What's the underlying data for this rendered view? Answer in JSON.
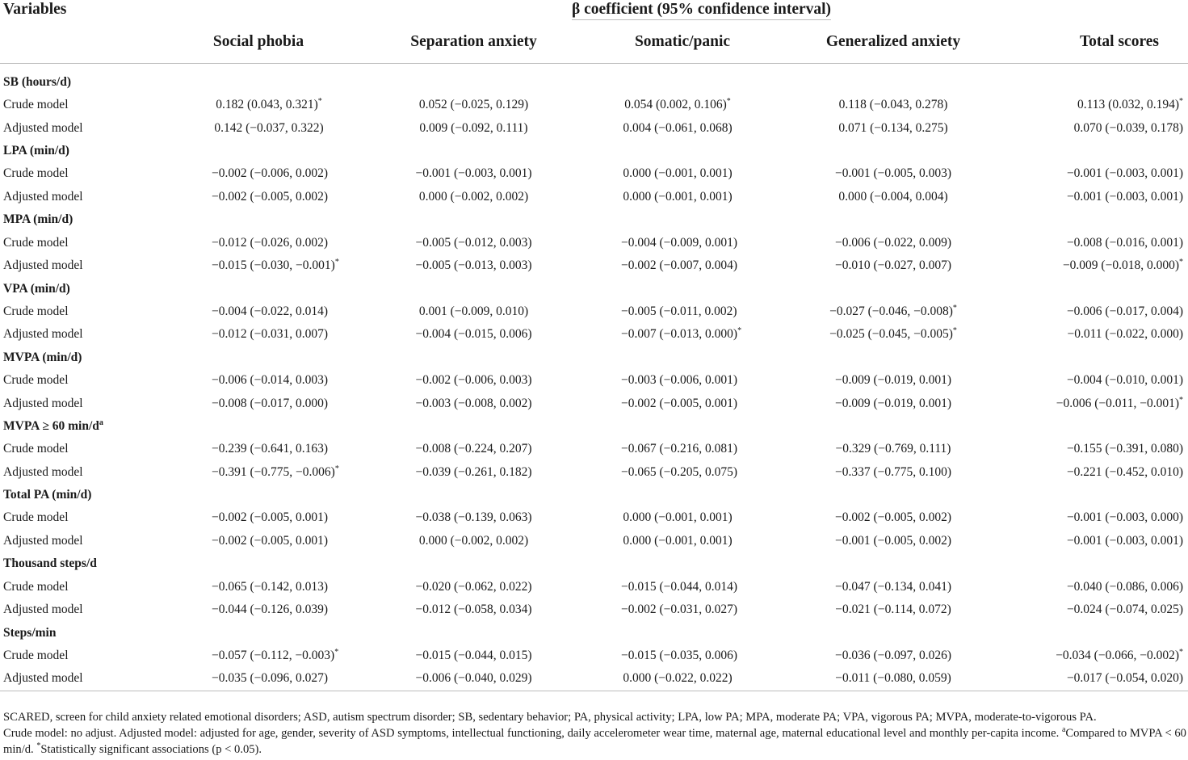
{
  "header": {
    "variables_label": "Variables",
    "span_label": "β coefficient (95% confidence interval)",
    "columns": [
      "Social phobia",
      "Separation anxiety",
      "Somatic/panic",
      "Generalized anxiety",
      "Total scores"
    ]
  },
  "groups": [
    {
      "label": "SB (hours/d)",
      "rows": [
        {
          "label": "Crude model",
          "cells": [
            {
              "text": "0.182 (0.043, 0.321)",
              "sig": "*"
            },
            {
              "text": "0.052 (−0.025, 0.129)",
              "sig": ""
            },
            {
              "text": "0.054 (0.002, 0.106)",
              "sig": "*"
            },
            {
              "text": "0.118 (−0.043, 0.278)",
              "sig": ""
            },
            {
              "text": "0.113 (0.032, 0.194)",
              "sig": "*"
            }
          ]
        },
        {
          "label": "Adjusted model",
          "cells": [
            {
              "text": "0.142 (−0.037, 0.322)",
              "sig": ""
            },
            {
              "text": "0.009 (−0.092, 0.111)",
              "sig": ""
            },
            {
              "text": "0.004 (−0.061, 0.068)",
              "sig": ""
            },
            {
              "text": "0.071 (−0.134, 0.275)",
              "sig": ""
            },
            {
              "text": "0.070 (−0.039, 0.178)",
              "sig": ""
            }
          ]
        }
      ]
    },
    {
      "label": "LPA (min/d)",
      "rows": [
        {
          "label": "Crude model",
          "cells": [
            {
              "text": "−0.002 (−0.006, 0.002)",
              "sig": ""
            },
            {
              "text": "−0.001 (−0.003, 0.001)",
              "sig": ""
            },
            {
              "text": "0.000 (−0.001, 0.001)",
              "sig": ""
            },
            {
              "text": "−0.001 (−0.005, 0.003)",
              "sig": ""
            },
            {
              "text": "−0.001 (−0.003, 0.001)",
              "sig": ""
            }
          ]
        },
        {
          "label": "Adjusted model",
          "cells": [
            {
              "text": "−0.002 (−0.005, 0.002)",
              "sig": ""
            },
            {
              "text": "0.000 (−0.002, 0.002)",
              "sig": ""
            },
            {
              "text": "0.000 (−0.001, 0.001)",
              "sig": ""
            },
            {
              "text": "0.000 (−0.004, 0.004)",
              "sig": ""
            },
            {
              "text": "−0.001 (−0.003, 0.001)",
              "sig": ""
            }
          ]
        }
      ]
    },
    {
      "label": "MPA (min/d)",
      "rows": [
        {
          "label": "Crude model",
          "cells": [
            {
              "text": "−0.012 (−0.026, 0.002)",
              "sig": ""
            },
            {
              "text": "−0.005 (−0.012, 0.003)",
              "sig": ""
            },
            {
              "text": "−0.004 (−0.009, 0.001)",
              "sig": ""
            },
            {
              "text": "−0.006 (−0.022, 0.009)",
              "sig": ""
            },
            {
              "text": "−0.008 (−0.016, 0.001)",
              "sig": ""
            }
          ]
        },
        {
          "label": "Adjusted model",
          "cells": [
            {
              "text": "−0.015 (−0.030, −0.001)",
              "sig": "*"
            },
            {
              "text": "−0.005 (−0.013, 0.003)",
              "sig": ""
            },
            {
              "text": "−0.002 (−0.007, 0.004)",
              "sig": ""
            },
            {
              "text": "−0.010 (−0.027, 0.007)",
              "sig": ""
            },
            {
              "text": "−0.009 (−0.018, 0.000)",
              "sig": "*"
            }
          ]
        }
      ]
    },
    {
      "label": "VPA (min/d)",
      "rows": [
        {
          "label": "Crude model",
          "cells": [
            {
              "text": "−0.004 (−0.022, 0.014)",
              "sig": ""
            },
            {
              "text": "0.001 (−0.009, 0.010)",
              "sig": ""
            },
            {
              "text": "−0.005 (−0.011, 0.002)",
              "sig": ""
            },
            {
              "text": "−0.027 (−0.046, −0.008)",
              "sig": "*"
            },
            {
              "text": "−0.006 (−0.017, 0.004)",
              "sig": ""
            }
          ]
        },
        {
          "label": "Adjusted model",
          "cells": [
            {
              "text": "−0.012 (−0.031, 0.007)",
              "sig": ""
            },
            {
              "text": "−0.004 (−0.015, 0.006)",
              "sig": ""
            },
            {
              "text": "−0.007 (−0.013, 0.000)",
              "sig": "*"
            },
            {
              "text": "−0.025 (−0.045, −0.005)",
              "sig": "*"
            },
            {
              "text": "−0.011 (−0.022, 0.000)",
              "sig": ""
            }
          ]
        }
      ]
    },
    {
      "label": "MVPA (min/d)",
      "rows": [
        {
          "label": "Crude model",
          "cells": [
            {
              "text": "−0.006 (−0.014, 0.003)",
              "sig": ""
            },
            {
              "text": "−0.002 (−0.006, 0.003)",
              "sig": ""
            },
            {
              "text": "−0.003 (−0.006, 0.001)",
              "sig": ""
            },
            {
              "text": "−0.009 (−0.019, 0.001)",
              "sig": ""
            },
            {
              "text": "−0.004 (−0.010, 0.001)",
              "sig": ""
            }
          ]
        },
        {
          "label": "Adjusted model",
          "cells": [
            {
              "text": "−0.008 (−0.017, 0.000)",
              "sig": ""
            },
            {
              "text": "−0.003 (−0.008, 0.002)",
              "sig": ""
            },
            {
              "text": "−0.002 (−0.005, 0.001)",
              "sig": ""
            },
            {
              "text": "−0.009 (−0.019, 0.001)",
              "sig": ""
            },
            {
              "text": "−0.006 (−0.011, −0.001)",
              "sig": "*"
            }
          ]
        }
      ]
    },
    {
      "label": "MVPA ≥ 60 min/d",
      "label_sup": "a",
      "rows": [
        {
          "label": "Crude model",
          "cells": [
            {
              "text": "−0.239 (−0.641, 0.163)",
              "sig": ""
            },
            {
              "text": "−0.008 (−0.224, 0.207)",
              "sig": ""
            },
            {
              "text": "−0.067 (−0.216, 0.081)",
              "sig": ""
            },
            {
              "text": "−0.329 (−0.769, 0.111)",
              "sig": ""
            },
            {
              "text": "−0.155 (−0.391, 0.080)",
              "sig": ""
            }
          ]
        },
        {
          "label": "Adjusted model",
          "cells": [
            {
              "text": "−0.391 (−0.775, −0.006)",
              "sig": "*"
            },
            {
              "text": "−0.039 (−0.261, 0.182)",
              "sig": ""
            },
            {
              "text": "−0.065 (−0.205, 0.075)",
              "sig": ""
            },
            {
              "text": "−0.337 (−0.775, 0.100)",
              "sig": ""
            },
            {
              "text": "−0.221 (−0.452, 0.010)",
              "sig": ""
            }
          ]
        }
      ]
    },
    {
      "label": "Total PA (min/d)",
      "rows": [
        {
          "label": "Crude model",
          "cells": [
            {
              "text": "−0.002 (−0.005, 0.001)",
              "sig": ""
            },
            {
              "text": "−0.038 (−0.139, 0.063)",
              "sig": ""
            },
            {
              "text": "0.000 (−0.001, 0.001)",
              "sig": ""
            },
            {
              "text": "−0.002 (−0.005, 0.002)",
              "sig": ""
            },
            {
              "text": "−0.001 (−0.003, 0.000)",
              "sig": ""
            }
          ]
        },
        {
          "label": "Adjusted model",
          "cells": [
            {
              "text": "−0.002 (−0.005, 0.001)",
              "sig": ""
            },
            {
              "text": "0.000 (−0.002, 0.002)",
              "sig": ""
            },
            {
              "text": "0.000 (−0.001, 0.001)",
              "sig": ""
            },
            {
              "text": "−0.001 (−0.005, 0.002)",
              "sig": ""
            },
            {
              "text": "−0.001 (−0.003, 0.001)",
              "sig": ""
            }
          ]
        }
      ]
    },
    {
      "label": "Thousand steps/d",
      "rows": [
        {
          "label": "Crude model",
          "cells": [
            {
              "text": "−0.065 (−0.142, 0.013)",
              "sig": ""
            },
            {
              "text": "−0.020 (−0.062, 0.022)",
              "sig": ""
            },
            {
              "text": "−0.015 (−0.044, 0.014)",
              "sig": ""
            },
            {
              "text": "−0.047 (−0.134, 0.041)",
              "sig": ""
            },
            {
              "text": "−0.040 (−0.086, 0.006)",
              "sig": ""
            }
          ]
        },
        {
          "label": "Adjusted model",
          "cells": [
            {
              "text": "−0.044 (−0.126, 0.039)",
              "sig": ""
            },
            {
              "text": "−0.012 (−0.058, 0.034)",
              "sig": ""
            },
            {
              "text": "−0.002 (−0.031, 0.027)",
              "sig": ""
            },
            {
              "text": "−0.021 (−0.114, 0.072)",
              "sig": ""
            },
            {
              "text": "−0.024 (−0.074, 0.025)",
              "sig": ""
            }
          ]
        }
      ]
    },
    {
      "label": "Steps/min",
      "rows": [
        {
          "label": "Crude model",
          "cells": [
            {
              "text": "−0.057 (−0.112, −0.003)",
              "sig": "*"
            },
            {
              "text": "−0.015 (−0.044, 0.015)",
              "sig": ""
            },
            {
              "text": "−0.015 (−0.035, 0.006)",
              "sig": ""
            },
            {
              "text": "−0.036 (−0.097, 0.026)",
              "sig": ""
            },
            {
              "text": "−0.034 (−0.066, −0.002)",
              "sig": "*"
            }
          ]
        },
        {
          "label": "Adjusted model",
          "cells": [
            {
              "text": "−0.035 (−0.096, 0.027)",
              "sig": ""
            },
            {
              "text": "−0.006 (−0.040, 0.029)",
              "sig": ""
            },
            {
              "text": "0.000 (−0.022, 0.022)",
              "sig": ""
            },
            {
              "text": "−0.011 (−0.080, 0.059)",
              "sig": ""
            },
            {
              "text": "−0.017 (−0.054, 0.020)",
              "sig": ""
            }
          ]
        }
      ]
    }
  ],
  "notes": {
    "abbreviations": "SCARED, screen for child anxiety related emotional disorders; ASD, autism spectrum disorder; SB, sedentary behavior; PA, physical activity; LPA, low PA; MPA, moderate PA; VPA, vigorous PA; MVPA, moderate-to-vigorous PA.",
    "models": "Crude model: no adjust. Adjusted model: adjusted for age, gender, severity of ASD symptoms, intellectual functioning, daily accelerometer wear time, maternal age, maternal educational level and monthly per-capita income.",
    "footnote_a_mark": "a",
    "footnote_a": "Compared to MVPA < 60",
    "footnote_a_cont": "min/d.",
    "footnote_star_mark": "*",
    "footnote_star": "Statistically significant associations (p < 0.05)."
  }
}
